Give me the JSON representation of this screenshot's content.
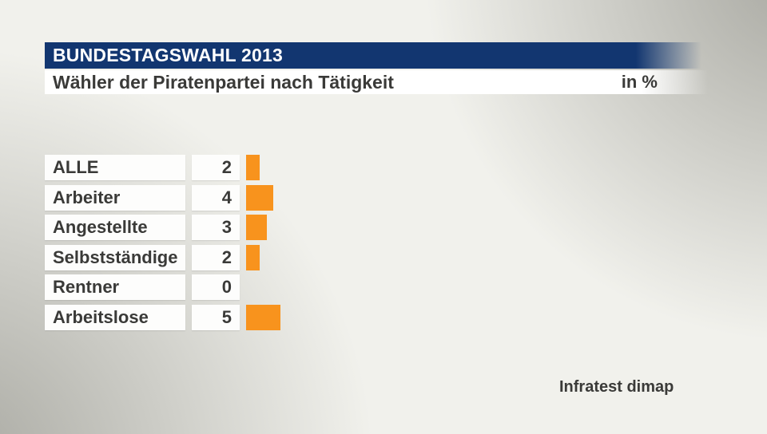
{
  "header": {
    "title": "BUNDESTAGSWAHL 2013"
  },
  "subheader": {
    "title": "Wähler der Piratenpartei nach Tätigkeit",
    "unit_label": "in %"
  },
  "source": {
    "label": "Infratest dimap"
  },
  "colors": {
    "header_blue": "#123670",
    "bar_orange": "#F8931D",
    "text_dark": "#3A3A38",
    "corner_gray": "#A8A8A1",
    "background_light": "#F1F1EC"
  },
  "chart_data": {
    "type": "bar",
    "orientation": "horizontal",
    "title": "Wähler der Piratenpartei nach Tätigkeit",
    "unit": "%",
    "categories": [
      "ALLE",
      "Arbeiter",
      "Angestellte",
      "Selbstständige",
      "Rentner",
      "Arbeitslose"
    ],
    "values": [
      2,
      4,
      3,
      2,
      0,
      5
    ],
    "xlim": [
      0,
      5
    ],
    "grid": false,
    "legend": "none"
  }
}
